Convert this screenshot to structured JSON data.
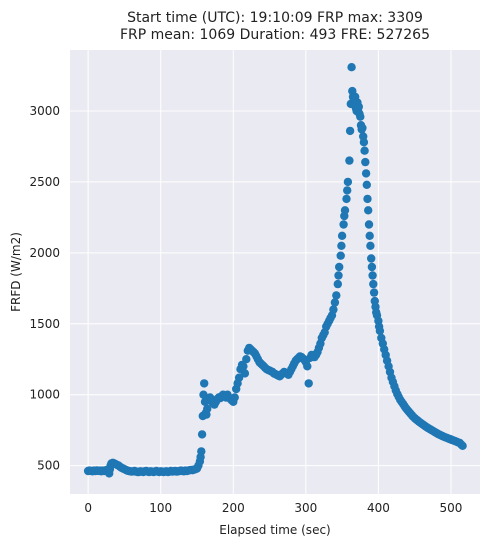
{
  "chart_data": {
    "type": "scatter",
    "title": [
      "Start time (UTC): 19:10:09 FRP max: 3309",
      "FRP mean: 1069 Duration: 493 FRE: 527265"
    ],
    "xlabel": "Elapsed time (sec)",
    "ylabel": "FRFD (W/m2)",
    "xlim": [
      -25,
      540
    ],
    "ylim": [
      300,
      3430
    ],
    "xticks": [
      0,
      100,
      200,
      300,
      400,
      500
    ],
    "yticks": [
      500,
      1000,
      1500,
      2000,
      2500,
      3000
    ],
    "grid": true,
    "colors": {
      "background": "#eaeaf2",
      "point": "#1f77b4"
    },
    "series": [
      {
        "points": [
          [
            0,
            462
          ],
          [
            2,
            465
          ],
          [
            4,
            463
          ],
          [
            6,
            460
          ],
          [
            8,
            465
          ],
          [
            10,
            462
          ],
          [
            12,
            466
          ],
          [
            14,
            463
          ],
          [
            16,
            465
          ],
          [
            18,
            460
          ],
          [
            20,
            465
          ],
          [
            22,
            462
          ],
          [
            24,
            467
          ],
          [
            26,
            470
          ],
          [
            28,
            455
          ],
          [
            29,
            445
          ],
          [
            30,
            475
          ],
          [
            31,
            500
          ],
          [
            32,
            515
          ],
          [
            34,
            520
          ],
          [
            36,
            515
          ],
          [
            38,
            510
          ],
          [
            40,
            505
          ],
          [
            42,
            500
          ],
          [
            44,
            492
          ],
          [
            46,
            485
          ],
          [
            48,
            480
          ],
          [
            50,
            475
          ],
          [
            52,
            470
          ],
          [
            54,
            465
          ],
          [
            56,
            462
          ],
          [
            58,
            460
          ],
          [
            60,
            458
          ],
          [
            62,
            460
          ],
          [
            64,
            462
          ],
          [
            66,
            458
          ],
          [
            68,
            455
          ],
          [
            70,
            455
          ],
          [
            72,
            460
          ],
          [
            74,
            458
          ],
          [
            76,
            455
          ],
          [
            78,
            460
          ],
          [
            80,
            462
          ],
          [
            82,
            458
          ],
          [
            84,
            455
          ],
          [
            86,
            460
          ],
          [
            88,
            458
          ],
          [
            90,
            455
          ],
          [
            92,
            458
          ],
          [
            94,
            462
          ],
          [
            96,
            458
          ],
          [
            98,
            455
          ],
          [
            100,
            460
          ],
          [
            102,
            458
          ],
          [
            104,
            455
          ],
          [
            106,
            458
          ],
          [
            108,
            460
          ],
          [
            110,
            455
          ],
          [
            112,
            458
          ],
          [
            114,
            462
          ],
          [
            116,
            458
          ],
          [
            118,
            460
          ],
          [
            120,
            462
          ],
          [
            122,
            458
          ],
          [
            124,
            460
          ],
          [
            126,
            462
          ],
          [
            128,
            465
          ],
          [
            130,
            462
          ],
          [
            132,
            460
          ],
          [
            134,
            465
          ],
          [
            136,
            462
          ],
          [
            138,
            465
          ],
          [
            140,
            468
          ],
          [
            142,
            470
          ],
          [
            144,
            468
          ],
          [
            146,
            472
          ],
          [
            148,
            475
          ],
          [
            150,
            480
          ],
          [
            152,
            500
          ],
          [
            154,
            530
          ],
          [
            155,
            560
          ],
          [
            156,
            600
          ],
          [
            157,
            720
          ],
          [
            158,
            850
          ],
          [
            159,
            1000
          ],
          [
            160,
            1080
          ],
          [
            161,
            950
          ],
          [
            162,
            870
          ],
          [
            163,
            860
          ],
          [
            164,
            900
          ],
          [
            166,
            960
          ],
          [
            168,
            980
          ],
          [
            170,
            960
          ],
          [
            172,
            940
          ],
          [
            174,
            930
          ],
          [
            176,
            950
          ],
          [
            178,
            970
          ],
          [
            180,
            980
          ],
          [
            182,
            975
          ],
          [
            184,
            990
          ],
          [
            186,
            1000
          ],
          [
            188,
            990
          ],
          [
            190,
            980
          ],
          [
            192,
            1000
          ],
          [
            194,
            980
          ],
          [
            196,
            970
          ],
          [
            198,
            960
          ],
          [
            200,
            950
          ],
          [
            202,
            980
          ],
          [
            204,
            1040
          ],
          [
            206,
            1080
          ],
          [
            208,
            1120
          ],
          [
            210,
            1180
          ],
          [
            212,
            1210
          ],
          [
            214,
            1200
          ],
          [
            216,
            1150
          ],
          [
            218,
            1250
          ],
          [
            220,
            1310
          ],
          [
            222,
            1330
          ],
          [
            224,
            1320
          ],
          [
            226,
            1310
          ],
          [
            228,
            1300
          ],
          [
            230,
            1290
          ],
          [
            232,
            1270
          ],
          [
            234,
            1250
          ],
          [
            236,
            1230
          ],
          [
            238,
            1220
          ],
          [
            240,
            1210
          ],
          [
            242,
            1200
          ],
          [
            244,
            1190
          ],
          [
            246,
            1180
          ],
          [
            248,
            1175
          ],
          [
            250,
            1170
          ],
          [
            252,
            1165
          ],
          [
            254,
            1160
          ],
          [
            256,
            1150
          ],
          [
            258,
            1145
          ],
          [
            260,
            1140
          ],
          [
            262,
            1135
          ],
          [
            264,
            1130
          ],
          [
            266,
            1140
          ],
          [
            268,
            1150
          ],
          [
            270,
            1160
          ],
          [
            272,
            1155
          ],
          [
            274,
            1150
          ],
          [
            276,
            1140
          ],
          [
            278,
            1160
          ],
          [
            280,
            1180
          ],
          [
            282,
            1200
          ],
          [
            284,
            1220
          ],
          [
            286,
            1240
          ],
          [
            288,
            1250
          ],
          [
            290,
            1260
          ],
          [
            292,
            1270
          ],
          [
            294,
            1265
          ],
          [
            296,
            1255
          ],
          [
            298,
            1245
          ],
          [
            300,
            1230
          ],
          [
            302,
            1200
          ],
          [
            304,
            1080
          ],
          [
            306,
            1260
          ],
          [
            308,
            1280
          ],
          [
            310,
            1270
          ],
          [
            312,
            1265
          ],
          [
            314,
            1280
          ],
          [
            316,
            1300
          ],
          [
            318,
            1330
          ],
          [
            320,
            1360
          ],
          [
            322,
            1400
          ],
          [
            324,
            1420
          ],
          [
            326,
            1440
          ],
          [
            328,
            1480
          ],
          [
            330,
            1500
          ],
          [
            332,
            1520
          ],
          [
            334,
            1540
          ],
          [
            336,
            1560
          ],
          [
            338,
            1600
          ],
          [
            340,
            1650
          ],
          [
            342,
            1700
          ],
          [
            344,
            1780
          ],
          [
            345,
            1840
          ],
          [
            346,
            1900
          ],
          [
            348,
            1980
          ],
          [
            349,
            2050
          ],
          [
            350,
            2120
          ],
          [
            352,
            2200
          ],
          [
            353,
            2260
          ],
          [
            354,
            2300
          ],
          [
            356,
            2380
          ],
          [
            357,
            2440
          ],
          [
            358,
            2500
          ],
          [
            360,
            2650
          ],
          [
            361,
            2860
          ],
          [
            362,
            3050
          ],
          [
            363,
            3309
          ],
          [
            364,
            3140
          ],
          [
            365,
            3100
          ],
          [
            366,
            3080
          ],
          [
            367,
            3050
          ],
          [
            368,
            3100
          ],
          [
            369,
            3020
          ],
          [
            370,
            3000
          ],
          [
            371,
            3060
          ],
          [
            372,
            3000
          ],
          [
            373,
            3030
          ],
          [
            374,
            2980
          ],
          [
            375,
            2960
          ],
          [
            376,
            2900
          ],
          [
            377,
            2870
          ],
          [
            378,
            2880
          ],
          [
            379,
            2820
          ],
          [
            380,
            2780
          ],
          [
            381,
            2720
          ],
          [
            382,
            2640
          ],
          [
            383,
            2560
          ],
          [
            384,
            2480
          ],
          [
            385,
            2380
          ],
          [
            386,
            2300
          ],
          [
            387,
            2200
          ],
          [
            388,
            2120
          ],
          [
            389,
            2050
          ],
          [
            390,
            1960
          ],
          [
            391,
            1900
          ],
          [
            392,
            1840
          ],
          [
            393,
            1780
          ],
          [
            394,
            1720
          ],
          [
            395,
            1660
          ],
          [
            396,
            1620
          ],
          [
            397,
            1580
          ],
          [
            398,
            1560
          ],
          [
            400,
            1520
          ],
          [
            401,
            1480
          ],
          [
            402,
            1450
          ],
          [
            404,
            1400
          ],
          [
            406,
            1360
          ],
          [
            408,
            1320
          ],
          [
            410,
            1280
          ],
          [
            412,
            1240
          ],
          [
            414,
            1200
          ],
          [
            416,
            1160
          ],
          [
            418,
            1120
          ],
          [
            420,
            1090
          ],
          [
            422,
            1060
          ],
          [
            424,
            1030
          ],
          [
            426,
            1005
          ],
          [
            428,
            985
          ],
          [
            430,
            965
          ],
          [
            432,
            950
          ],
          [
            434,
            935
          ],
          [
            436,
            920
          ],
          [
            438,
            905
          ],
          [
            440,
            892
          ],
          [
            442,
            880
          ],
          [
            444,
            868
          ],
          [
            446,
            856
          ],
          [
            448,
            845
          ],
          [
            450,
            835
          ],
          [
            452,
            826
          ],
          [
            454,
            818
          ],
          [
            456,
            810
          ],
          [
            458,
            802
          ],
          [
            460,
            795
          ],
          [
            462,
            788
          ],
          [
            464,
            780
          ],
          [
            466,
            773
          ],
          [
            468,
            766
          ],
          [
            470,
            760
          ],
          [
            472,
            754
          ],
          [
            474,
            748
          ],
          [
            476,
            742
          ],
          [
            478,
            736
          ],
          [
            480,
            730
          ],
          [
            482,
            724
          ],
          [
            484,
            719
          ],
          [
            486,
            714
          ],
          [
            488,
            709
          ],
          [
            490,
            704
          ],
          [
            492,
            700
          ],
          [
            494,
            696
          ],
          [
            496,
            692
          ],
          [
            498,
            688
          ],
          [
            500,
            684
          ],
          [
            502,
            680
          ],
          [
            504,
            676
          ],
          [
            506,
            672
          ],
          [
            508,
            668
          ],
          [
            510,
            664
          ],
          [
            512,
            660
          ],
          [
            514,
            650
          ],
          [
            516,
            640
          ]
        ]
      }
    ]
  }
}
